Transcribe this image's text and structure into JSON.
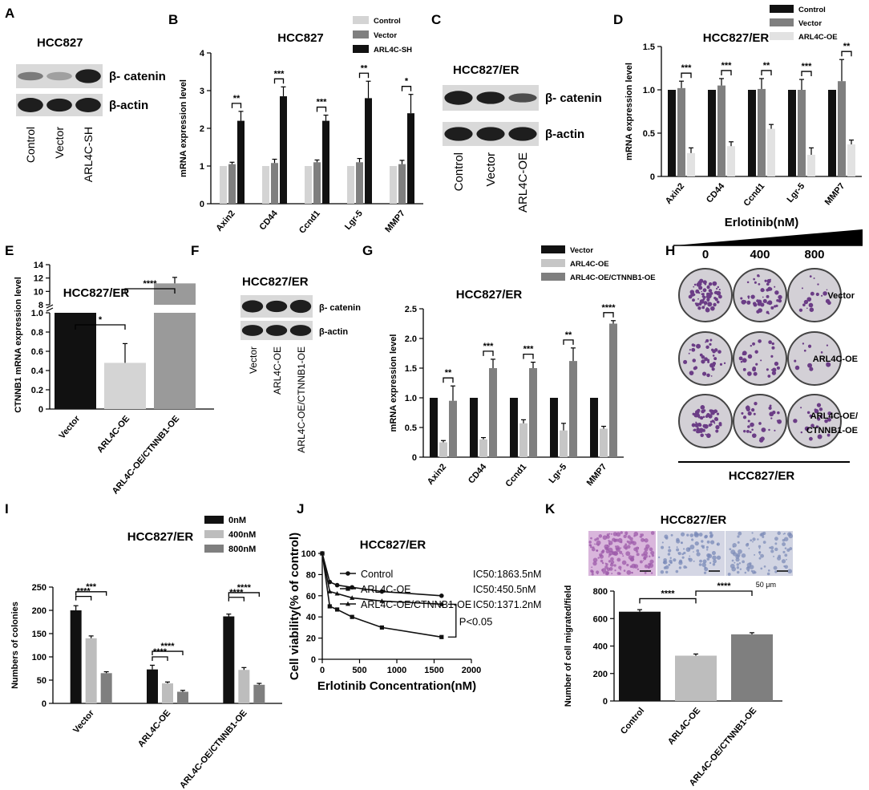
{
  "panel_letters": {
    "A": "A",
    "B": "B",
    "C": "C",
    "D": "D",
    "E": "E",
    "F": "F",
    "G": "G",
    "H": "H",
    "I": "I",
    "J": "J",
    "K": "K"
  },
  "colors": {
    "black": "#111111",
    "dark_gray": "#7f7f7f",
    "light_gray": "#d4d4d4",
    "mid_gray": "#9a9a9a",
    "lighter": "#c6c6c6",
    "blot_bg": "#d9d9d9",
    "band": "#1e1e1e",
    "purple": "#6b3d86",
    "plate": "#d3d0d6"
  },
  "blotA": {
    "title": "HCC827",
    "band_labels": [
      "β- catenin",
      "β-actin"
    ],
    "lanes": [
      "Control",
      "Vector",
      "ARL4C-SH"
    ]
  },
  "blotC": {
    "title": "HCC827/ER",
    "band_labels": [
      "β- catenin",
      "β-actin"
    ],
    "lanes": [
      "Control",
      "Vector",
      "ARL4C-OE"
    ]
  },
  "blotF": {
    "title": "HCC827/ER",
    "band_labels": [
      "β- catenin",
      "β-actin"
    ],
    "lanes": [
      "Vector",
      "ARL4C-OE",
      "ARL4C-OE/CTNNB1-OE"
    ]
  },
  "plates": {
    "top_label": "Erlotinib(nM)",
    "doses": [
      "0",
      "400",
      "800"
    ],
    "rows": [
      "Vector",
      "ARL4C-OE",
      "ARL4C-OE/"
    ],
    "row_suffix": "CTNNB1-OE",
    "bottom_label": "HCC827/ER"
  },
  "micro": {
    "title": "HCC827/ER",
    "scale": "50 μm"
  },
  "chart_data": [
    {
      "id": "B",
      "type": "bar",
      "title": "HCC827",
      "ylabel": "mRNA expression level",
      "ylim": [
        0,
        4
      ],
      "yticks": [
        0,
        1,
        2,
        3,
        4
      ],
      "categories": [
        "Axin2",
        "CD44",
        "Ccnd1",
        "Lgr-5",
        "MMP7"
      ],
      "series": [
        {
          "name": "Control",
          "values": [
            1,
            1,
            1,
            1,
            1
          ],
          "errors": [
            0,
            0,
            0,
            0,
            0
          ]
        },
        {
          "name": "Vector",
          "values": [
            1.05,
            1.08,
            1.1,
            1.1,
            1.05
          ],
          "errors": [
            0.05,
            0.1,
            0.06,
            0.1,
            0.1
          ]
        },
        {
          "name": "ARL4C-SH",
          "values": [
            2.2,
            2.85,
            2.2,
            2.8,
            2.4
          ],
          "errors": [
            0.25,
            0.25,
            0.15,
            0.45,
            0.5
          ]
        }
      ],
      "sig": [
        "**",
        "***",
        "***",
        "**",
        "*"
      ],
      "legend": "top-right"
    },
    {
      "id": "D",
      "type": "bar",
      "title": "HCC827/ER",
      "ylabel": "mRNA expression level",
      "ylim": [
        0,
        1.5
      ],
      "yticks": [
        0,
        0.5,
        1.0,
        1.5
      ],
      "categories": [
        "Axin2",
        "CD44",
        "Ccnd1",
        "Lgr-5",
        "MMP7"
      ],
      "series": [
        {
          "name": "Control",
          "values": [
            1,
            1,
            1,
            1,
            1
          ],
          "errors": [
            0,
            0,
            0,
            0,
            0
          ]
        },
        {
          "name": "Vector",
          "values": [
            1.02,
            1.05,
            1.01,
            1.0,
            1.1
          ],
          "errors": [
            0.08,
            0.08,
            0.12,
            0.12,
            0.25
          ]
        },
        {
          "name": "ARL4C-OE",
          "values": [
            0.27,
            0.35,
            0.55,
            0.25,
            0.37
          ],
          "errors": [
            0.06,
            0.05,
            0.05,
            0.08,
            0.05
          ]
        }
      ],
      "sig": [
        "***",
        "***",
        "**",
        "***",
        "**"
      ],
      "legend": "top-right"
    },
    {
      "id": "E",
      "type": "bar",
      "title": "HCC827/ER",
      "ylabel": "CTNNB1 mRNA expression level",
      "broken_axis": true,
      "yticks_low": [
        0,
        0.2,
        0.4,
        0.6,
        0.8,
        1.0
      ],
      "yticks_high": [
        8,
        10,
        12,
        14
      ],
      "categories": [
        "Vector",
        "ARL4C-OE",
        "ARL4C-OE/CTNNB1-OE"
      ],
      "values": [
        1.0,
        0.48,
        11.2
      ],
      "errors": [
        0,
        0.2,
        0.9
      ],
      "sig": [
        {
          "from": 0,
          "to": 1,
          "label": "*"
        },
        {
          "from": 1,
          "to": 2,
          "label": "****"
        }
      ]
    },
    {
      "id": "G",
      "type": "bar",
      "title": "HCC827/ER",
      "ylabel": "mRNA expression level",
      "ylim": [
        0,
        2.5
      ],
      "yticks": [
        0,
        0.5,
        1.0,
        1.5,
        2.0,
        2.5
      ],
      "categories": [
        "Axin2",
        "CD44",
        "Ccnd1",
        "Lgr-5",
        "MMP7"
      ],
      "series": [
        {
          "name": "Vector",
          "values": [
            1,
            1,
            1,
            1,
            1
          ],
          "errors": [
            0,
            0,
            0,
            0,
            0
          ]
        },
        {
          "name": "ARL4C-OE",
          "values": [
            0.25,
            0.3,
            0.57,
            0.45,
            0.48
          ],
          "errors": [
            0.03,
            0.03,
            0.06,
            0.12,
            0.04
          ]
        },
        {
          "name": "ARL4C-OE/CTNNB1-OE",
          "values": [
            0.95,
            1.5,
            1.5,
            1.62,
            2.25
          ],
          "errors": [
            0.25,
            0.15,
            0.1,
            0.22,
            0.05
          ]
        }
      ],
      "sig": [
        "**",
        "***",
        "***",
        "**",
        "****"
      ],
      "legend": "top-right"
    },
    {
      "id": "I",
      "type": "bar",
      "title": "HCC827/ER",
      "ylabel": "Numbers of colonies",
      "ylim": [
        0,
        250
      ],
      "yticks": [
        0,
        50,
        100,
        150,
        200,
        250
      ],
      "categories": [
        "Vector",
        "ARL4C-OE",
        "ARL4C-OE/CTNNB1-OE"
      ],
      "series": [
        {
          "name": "0nM",
          "values": [
            200,
            73,
            187
          ],
          "errors": [
            10,
            9,
            5
          ]
        },
        {
          "name": "400nM",
          "values": [
            140,
            43,
            72
          ],
          "errors": [
            5,
            3,
            5
          ]
        },
        {
          "name": "800nM",
          "values": [
            65,
            25,
            40
          ],
          "errors": [
            3,
            3,
            3
          ]
        }
      ],
      "sig_labels": [
        "****",
        "***"
      ],
      "legend": "top-right"
    },
    {
      "id": "J",
      "type": "line",
      "title": "HCC827/ER",
      "xlabel": "Erlotinib Concentration(nM)",
      "ylabel": "Cell viability(% of control)",
      "xlim": [
        0,
        2000
      ],
      "ylim": [
        0,
        100
      ],
      "xticks": [
        0,
        500,
        1000,
        1500,
        2000
      ],
      "yticks": [
        0,
        20,
        40,
        60,
        80,
        100
      ],
      "series": [
        {
          "name": "Control",
          "ic50": "IC50:1863.5nM",
          "marker": "circle",
          "x": [
            0,
            100,
            200,
            400,
            800,
            1600
          ],
          "y": [
            100,
            73,
            70,
            68,
            64,
            60
          ]
        },
        {
          "name": "ARL4C-OE",
          "ic50": "IC50:450.5nM",
          "marker": "square",
          "x": [
            0,
            100,
            200,
            400,
            800,
            1600
          ],
          "y": [
            100,
            50,
            47,
            40,
            30,
            21
          ]
        },
        {
          "name": "ARL4C-OE/CTNNB1-OE",
          "ic50": "IC50:1371.2nM",
          "marker": "triangle",
          "x": [
            0,
            100,
            200,
            400,
            800,
            1600
          ],
          "y": [
            100,
            64,
            62,
            58,
            55,
            52
          ]
        }
      ],
      "annotation": "P<0.05",
      "legend": "top"
    },
    {
      "id": "K",
      "type": "bar",
      "ylabel": "Number of cell migrated/field",
      "ylim": [
        0,
        800
      ],
      "yticks": [
        0,
        200,
        400,
        600,
        800
      ],
      "categories": [
        "Control",
        "ARL4C-OE",
        "ARL4C-OE/CTNNB1-OE"
      ],
      "values": [
        650,
        330,
        485
      ],
      "errors": [
        15,
        12,
        12
      ],
      "sig": [
        {
          "from": 0,
          "to": 1,
          "label": "****"
        },
        {
          "from": 1,
          "to": 2,
          "label": "****"
        }
      ]
    }
  ]
}
